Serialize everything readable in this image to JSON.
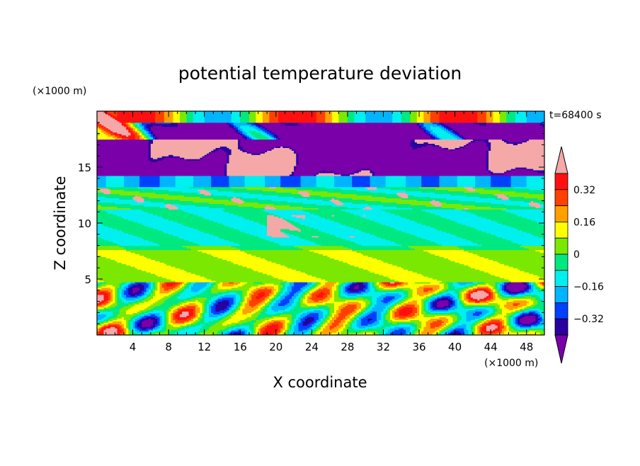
{
  "chart_data": {
    "type": "heatmap",
    "title": "potential temperature deviation",
    "xlabel": "X coordinate",
    "ylabel": "Z coordinate",
    "x_unit": "(×1000 m)",
    "y_unit": "(×1000 m)",
    "time_label": "t=68400 s",
    "xlim": [
      0,
      50
    ],
    "ylim": [
      0,
      20
    ],
    "x_ticks": [
      "4",
      "8",
      "12",
      "16",
      "20",
      "24",
      "28",
      "32",
      "36",
      "40",
      "44",
      "48"
    ],
    "y_ticks": [
      "5",
      "10",
      "15"
    ],
    "colorbar": {
      "levels": [
        -0.4,
        -0.32,
        -0.24,
        -0.16,
        -0.08,
        0,
        0.08,
        0.16,
        0.24,
        0.32,
        0.4
      ],
      "labels": [
        "0.32",
        "0.16",
        "0",
        "−0.16",
        "−0.32"
      ],
      "colors": [
        "#7a00aa",
        "#2a00a0",
        "#0040ff",
        "#00b4ff",
        "#00f0f0",
        "#00e880",
        "#7ae800",
        "#ffff00",
        "#ffa000",
        "#ff4000",
        "#ff1010",
        "#f4a8a8"
      ]
    },
    "layers": [
      {
        "z_range": [
          17.5,
          20
        ],
        "dominant": "-0.4 (purple) with pink patches (>0.4)"
      },
      {
        "z_range": [
          14,
          17.5
        ],
        "dominant": "mixed purple and pink"
      },
      {
        "z_range": [
          13,
          14
        ],
        "dominant": "-0.2 (blue)"
      },
      {
        "z_range": [
          11,
          13
        ],
        "dominant": "0 to -0.08 (cyan/green)"
      },
      {
        "z_range": [
          8,
          11
        ],
        "dominant": "-0.08 (cyan) with pink patches"
      },
      {
        "z_range": [
          5,
          8
        ],
        "dominant": "0.08 (light green)"
      },
      {
        "z_range": [
          0,
          5
        ],
        "dominant": "strong mixed oscillations -0.4 to 0.4"
      }
    ]
  }
}
